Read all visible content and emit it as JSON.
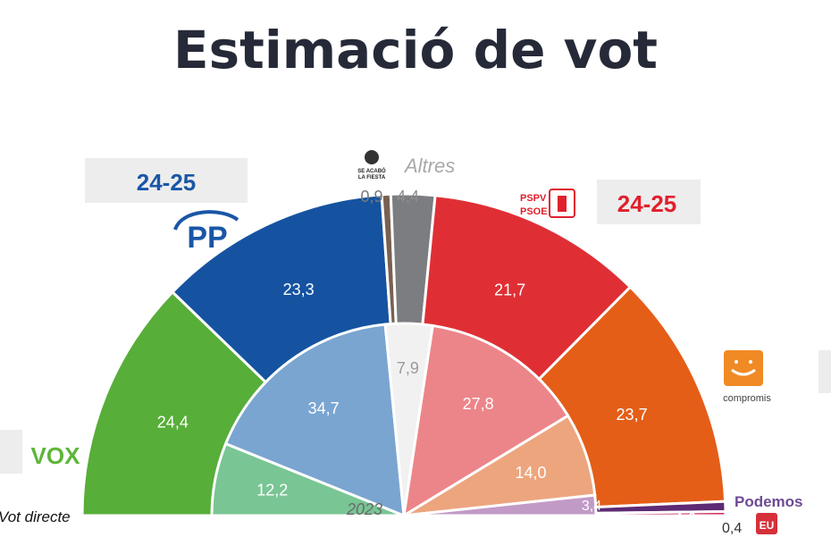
{
  "chart_data": {
    "type": "pie",
    "title": "Estimació de vot",
    "outer_series": [
      {
        "party": "VOX",
        "value": "24,4",
        "color": "#57ae39"
      },
      {
        "party": "PP",
        "value": "23,3",
        "color": "#1553a1"
      },
      {
        "party": "SE ACABÓ LA FIESTA",
        "value": "0,9",
        "color": "#7a6050"
      },
      {
        "party": "Altres",
        "value": "4,4",
        "color": "#7c7d80"
      },
      {
        "party": "PSPV-PSOE",
        "value": "21,7",
        "color": "#df2f35"
      },
      {
        "party": "Compromís",
        "value": "23,7",
        "color": "#e45e18"
      },
      {
        "party": "Podemos",
        "value": "1,0",
        "color": "#5d2a74"
      },
      {
        "party": "EU",
        "value": "0,4",
        "color": "#c7164a"
      }
    ],
    "inner_label": "2023",
    "inner_series": [
      {
        "party": "VOX",
        "value": "12,2",
        "color": "#79c594"
      },
      {
        "party": "PP",
        "value": "34,7",
        "color": "#7aa5d1"
      },
      {
        "party": "Altres",
        "value": "7,9",
        "color": "#f1f1f1"
      },
      {
        "party": "PSPV-PSOE",
        "value": "27,8",
        "color": "#ec8589"
      },
      {
        "party": "Compromís",
        "value": "14,0",
        "color": "#eda57e"
      },
      {
        "party": "Podemos",
        "value": "3,4",
        "color": "#c29ac6"
      }
    ],
    "seat_estimates": [
      {
        "party": "PP",
        "value": "24-25"
      },
      {
        "party": "PSPV-PSOE",
        "value": "24-25"
      }
    ],
    "legend": {
      "altres": "Altres",
      "vox": "VOX",
      "pp": "PP",
      "pspv_line1": "PSPV",
      "pspv_line2": "PSOE",
      "compromis": "compromis",
      "podemos": "Podemos",
      "salf_line1": "SE ACABÓ",
      "salf_line2": "LA FIESTA",
      "vot_directe": "Vot directe"
    }
  }
}
